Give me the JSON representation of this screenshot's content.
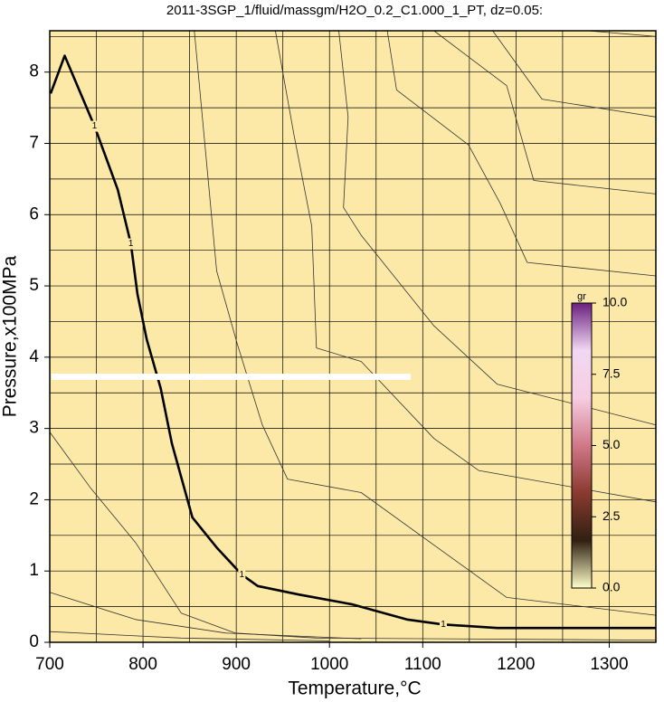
{
  "chart_data": {
    "type": "contour",
    "title": "2011-3SGP_1/fluid/massgm/H2O_0.2_C1.000_1_PT, dz=0.05:",
    "xlabel": "Temperature,°C",
    "ylabel": "Pressure,x100MPa",
    "xlim": [
      700,
      1350
    ],
    "ylim": [
      0,
      8.58
    ],
    "xticks": [
      700,
      800,
      900,
      1000,
      1100,
      1200,
      1300
    ],
    "yticks": [
      0,
      1,
      2,
      3,
      4,
      5,
      6,
      7,
      8
    ],
    "xminor": [
      750,
      850,
      950,
      1050,
      1150,
      1250
    ],
    "yminor": [
      0.5,
      1.5,
      2.5,
      3.5,
      4.5,
      5.5,
      6.5,
      7.5,
      8.5
    ],
    "grid": true,
    "background": "#fce9a8",
    "series": [
      {
        "color": "#000000",
        "width": 2.6,
        "level": 1,
        "x": [
          701,
          716,
          748,
          773,
          787,
          794,
          804,
          819,
          831,
          853,
          879,
          906,
          923,
          967,
          1025,
          1083,
          1122,
          1180,
          1350
        ],
        "values": [
          7.7,
          8.23,
          7.24,
          6.35,
          5.59,
          4.89,
          4.25,
          3.56,
          2.79,
          1.75,
          1.33,
          0.95,
          0.79,
          0.67,
          0.53,
          0.32,
          0.25,
          0.2,
          0.2
        ],
        "label_x": [
          748,
          787,
          906,
          1122
        ],
        "label_y": [
          7.24,
          5.59,
          0.95,
          0.25
        ]
      },
      {
        "color": "#333333",
        "width": 0.8,
        "x": [
          700,
          744,
          792,
          841,
          899,
          986,
          1350
        ],
        "values": [
          2.95,
          2.16,
          1.4,
          0.41,
          0.13,
          0.06,
          0.03
        ]
      },
      {
        "color": "#333333",
        "width": 0.8,
        "x": [
          700,
          792,
          889,
          1034
        ],
        "values": [
          0.7,
          0.32,
          0.13,
          0.05
        ]
      },
      {
        "color": "#333333",
        "width": 0.8,
        "x": [
          700,
          841,
          1000
        ],
        "values": [
          0.15,
          0.06,
          0.02
        ]
      },
      {
        "color": "#333333",
        "width": 0.8,
        "x": [
          855,
          870,
          879,
          901,
          928,
          955,
          1034,
          1122,
          1190,
          1350
        ],
        "values": [
          8.58,
          6.48,
          5.21,
          4.19,
          3.05,
          2.29,
          2.1,
          1.27,
          0.63,
          0.38
        ]
      },
      {
        "color": "#333333",
        "width": 0.8,
        "x": [
          942,
          962,
          981,
          986,
          1034,
          1112,
          1160,
          1350
        ],
        "values": [
          8.58,
          7.11,
          5.84,
          4.13,
          3.94,
          2.86,
          2.41,
          1.97
        ]
      },
      {
        "color": "#333333",
        "width": 0.8,
        "x": [
          1010,
          1020,
          1015,
          1034,
          1112,
          1180,
          1350
        ],
        "values": [
          8.58,
          7.37,
          6.1,
          5.71,
          4.44,
          3.62,
          3.05
        ]
      },
      {
        "color": "#333333",
        "width": 0.8,
        "x": [
          1062,
          1072,
          1149,
          1183,
          1212,
          1350
        ],
        "values": [
          8.58,
          7.75,
          6.98,
          6.16,
          5.33,
          5.14
        ]
      },
      {
        "color": "#333333",
        "width": 0.8,
        "x": [
          1112,
          1190,
          1219,
          1350
        ],
        "values": [
          8.58,
          7.81,
          6.48,
          6.29
        ]
      },
      {
        "color": "#333333",
        "width": 0.8,
        "x": [
          1175,
          1228,
          1350
        ],
        "values": [
          8.58,
          7.62,
          7.37
        ]
      },
      {
        "color": "#333333",
        "width": 0.8,
        "x": [
          1277,
          1350
        ],
        "values": [
          8.58,
          8.5
        ]
      }
    ],
    "colorbar": {
      "label": "gr",
      "lim": [
        0,
        10
      ],
      "ticks": [
        {
          "value": 0,
          "label": "0.0"
        },
        {
          "value": 2.5,
          "label": "2.5"
        },
        {
          "value": 5,
          "label": "5.0"
        },
        {
          "value": 7.5,
          "label": "7.5"
        },
        {
          "value": 10,
          "label": "10.0"
        }
      ],
      "colors": [
        "#ffffcc",
        "#302010",
        "#8a3a30",
        "#d07888",
        "#f6cde2",
        "#f2d8f2",
        "#6a2080"
      ]
    }
  }
}
